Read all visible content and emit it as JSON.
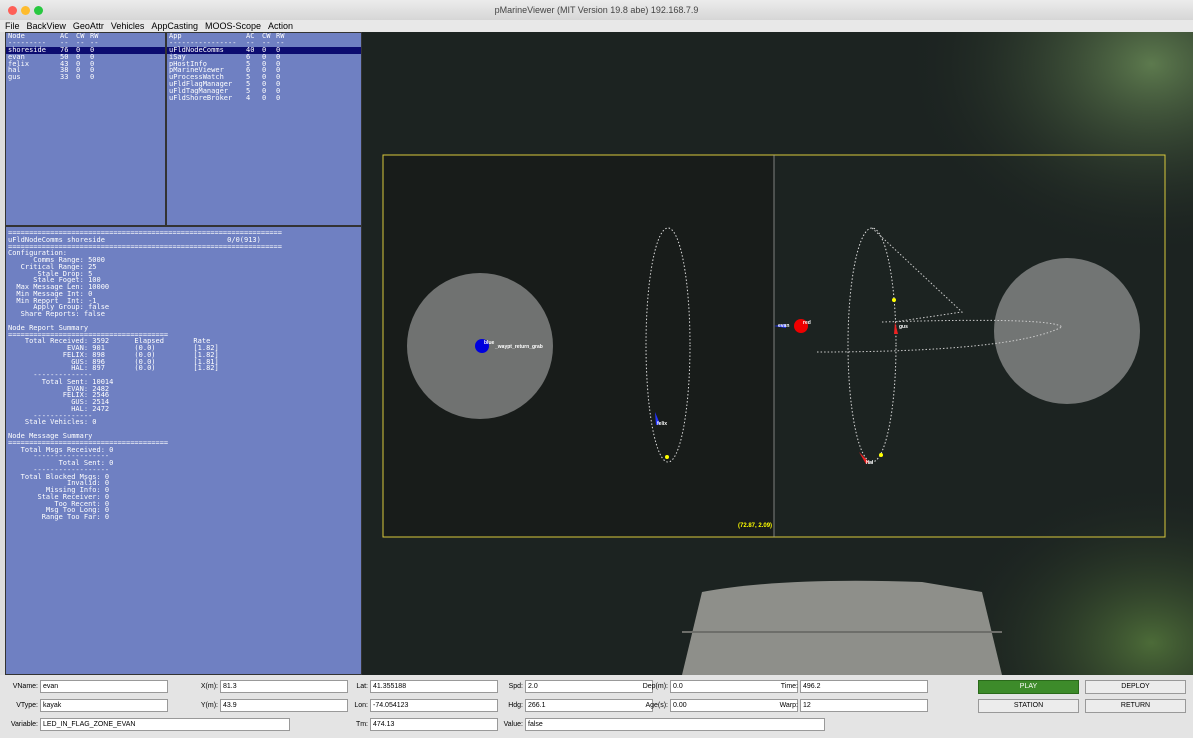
{
  "window": {
    "title": "pMarineViewer (MIT Version 19.8 abe) 192.168.7.9"
  },
  "menu": [
    "File",
    "BackView",
    "GeoAttr",
    "Vehicles",
    "AppCasting",
    "MOOS-Scope",
    "Action"
  ],
  "node_table": {
    "header": [
      "Node",
      "AC",
      "CW",
      "RW"
    ],
    "separator": [
      "---------",
      "--",
      "--",
      "--"
    ],
    "rows": [
      [
        "shoreside",
        "76",
        "0",
        "0"
      ],
      [
        "evan",
        "50",
        "0",
        "0"
      ],
      [
        "felix",
        "43",
        "0",
        "0"
      ],
      [
        "hal",
        "38",
        "0",
        "0"
      ],
      [
        "gus",
        "33",
        "0",
        "0"
      ]
    ]
  },
  "app_table": {
    "header": [
      "App",
      "AC",
      "CW",
      "RW"
    ],
    "separator": [
      "----------------",
      "--",
      "--",
      "--"
    ],
    "rows": [
      [
        "uFldNodeComms",
        "40",
        "0",
        "0"
      ],
      [
        "iSay",
        "6",
        "0",
        "0"
      ],
      [
        "pHostInfo",
        "5",
        "0",
        "0"
      ],
      [
        "pMarineViewer",
        "6",
        "0",
        "0"
      ],
      [
        "uProcessWatch",
        "5",
        "0",
        "0"
      ],
      [
        "uFldFlagManager",
        "5",
        "0",
        "0"
      ],
      [
        "uFldTagManager",
        "5",
        "0",
        "0"
      ],
      [
        "uFldShoreBroker",
        "4",
        "0",
        "0"
      ]
    ]
  },
  "appcast": {
    "sections": [
      [
        "=================================================================",
        "uFldNodeComms shoreside                             0/0(913)",
        "=================================================================",
        "Configuration:",
        "      Comms Range: 5000",
        "   Critical Range: 25",
        "       Stale Drop: 5",
        "      Stale Foget: 100",
        "  Max Message Len: 10000",
        "  Min Message Int: 0",
        "  Min Report  Int: -1",
        "      Apply Group: false",
        "   Share Reports: false"
      ],
      [
        "Node Report Summary",
        "======================================",
        "    Total Received: 3592      Elapsed       Rate",
        "              EVAN: 901       (0.0)         [1.82]",
        "             FELIX: 898       (0.0)         [1.82]",
        "               GUS: 896       (0.0)         [1.81]",
        "               HAL: 897       (0.0)         [1.82]",
        "      --------------",
        "        Total Sent: 10014",
        "              EVAN: 2482",
        "             FELIX: 2546",
        "               GUS: 2514",
        "               HAL: 2472",
        "      --------------",
        "    Stale Vehicles: 0"
      ],
      [
        "Node Message Summary",
        "======================================",
        "   Total Msgs Received: 0",
        "      ------------------",
        "            Total Sent: 0",
        "      ------------------",
        "   Total Blocked Msgs: 0",
        "              Invalid: 0",
        "         Missing Info: 0",
        "       Stale Receiver: 0",
        "           Too Recent: 0",
        "         Msg Too Long: 0",
        "        Range Too Far: 0"
      ]
    ]
  },
  "map": {
    "labels": [
      "blue",
      "_waypt_return_grab",
      "evan",
      "red",
      "gus",
      "felix",
      "hal"
    ],
    "coords": "(72.87, 2.09)"
  },
  "fields": [
    {
      "label": "VName:",
      "value": "evan"
    },
    {
      "label": "X(m):",
      "value": "81.3"
    },
    {
      "label": "Lat:",
      "value": "41.355188"
    },
    {
      "label": "Spd:",
      "value": "2.0"
    },
    {
      "label": "Dep(m):",
      "value": "0.0"
    },
    {
      "label": "Time:",
      "value": "496.2"
    },
    {
      "label": "VType:",
      "value": "kayak"
    },
    {
      "label": "Y(m):",
      "value": "43.9"
    },
    {
      "label": "Lon:",
      "value": "-74.054123"
    },
    {
      "label": "Hdg:",
      "value": "266.1"
    },
    {
      "label": "Age(s):",
      "value": "0.00"
    },
    {
      "label": "Warp:",
      "value": "12"
    },
    {
      "label": "Variable:",
      "value": "LED_IN_FLAG_ZONE_EVAN"
    },
    {
      "label": "Tm:",
      "value": "474.13"
    },
    {
      "label": "Value:",
      "value": "false"
    }
  ],
  "buttons": [
    "PLAY",
    "DEPLOY",
    "STATION",
    "RETURN"
  ]
}
